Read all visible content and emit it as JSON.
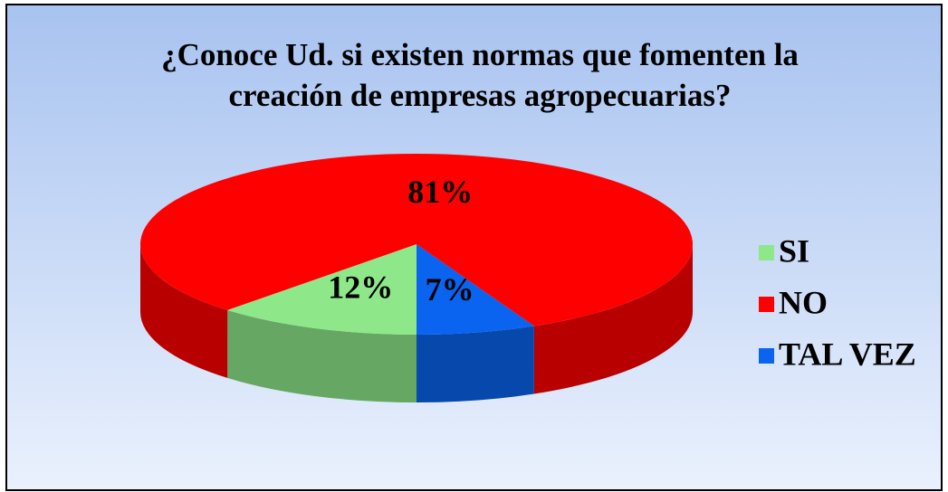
{
  "chart_data": {
    "type": "pie",
    "title": "¿Conoce Ud. si existen normas que fomenten la creación de empresas agropecuarias?",
    "categories": [
      "SI",
      "NO",
      "TAL VEZ"
    ],
    "values": [
      12,
      81,
      7
    ],
    "value_labels": [
      "12%",
      "81%",
      "7%"
    ],
    "colors": [
      "#8ee88a",
      "#ff0000",
      "#0a64f0"
    ],
    "legend": "right"
  }
}
